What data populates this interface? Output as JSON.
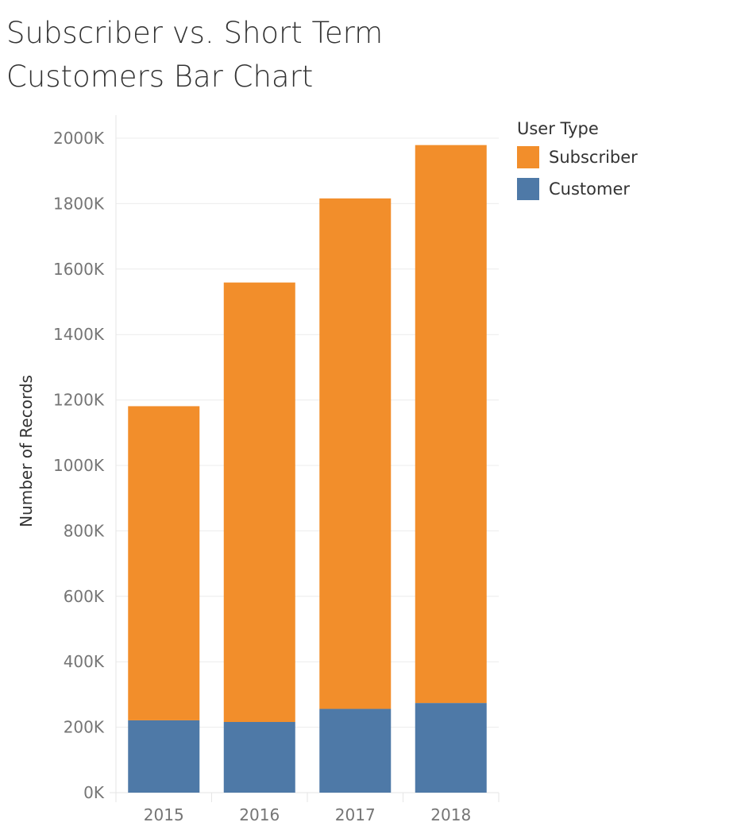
{
  "title_lines": [
    "Subscriber vs. Short Term",
    "Customers Bar Chart"
  ],
  "legend": {
    "title": "User Type",
    "items": [
      {
        "label": "Subscriber",
        "color": "#f28e2b"
      },
      {
        "label": "Customer",
        "color": "#4e79a7"
      }
    ]
  },
  "chart_data": {
    "type": "bar",
    "stacked": true,
    "title": "Subscriber vs. Short Term Customers Bar Chart",
    "xlabel": "",
    "ylabel": "Number of Records",
    "categories": [
      "2015",
      "2016",
      "2017",
      "2018"
    ],
    "series": [
      {
        "name": "Customer",
        "color": "#4e79a7",
        "values": [
          221000,
          216000,
          256000,
          274000
        ]
      },
      {
        "name": "Subscriber",
        "color": "#f28e2b",
        "values": [
          960000,
          1343000,
          1560000,
          1705000
        ]
      }
    ],
    "ylim": [
      0,
      2000000
    ],
    "yticks": [
      0,
      200000,
      400000,
      600000,
      800000,
      1000000,
      1200000,
      1400000,
      1600000,
      1800000,
      2000000
    ],
    "ytick_labels": [
      "0K",
      "200K",
      "400K",
      "600K",
      "800K",
      "1000K",
      "1200K",
      "1400K",
      "1600K",
      "1800K",
      "2000K"
    ],
    "grid": true,
    "legend_position": "right"
  }
}
